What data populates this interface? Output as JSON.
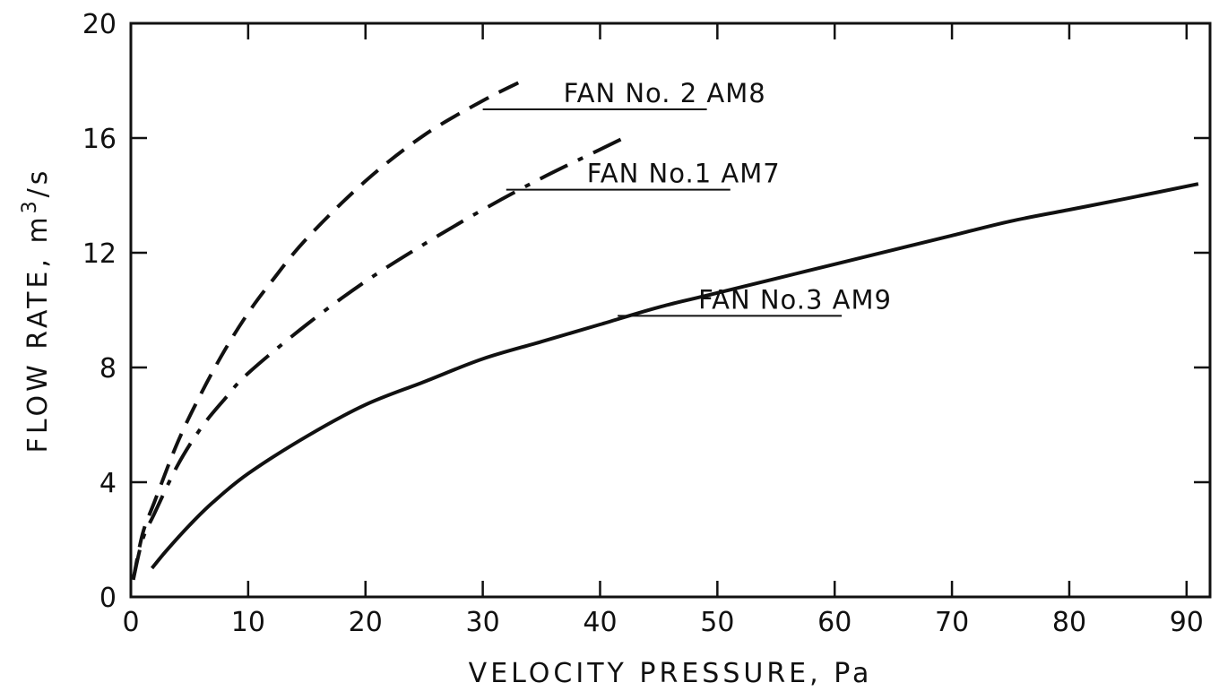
{
  "chart_data": {
    "type": "line",
    "title": "",
    "xlabel": "VELOCITY PRESSURE, Pa",
    "ylabel": "FLOW RATE, m",
    "ylabel_sup": "3",
    "ylabel_suffix": "/s",
    "xlim": [
      0,
      92
    ],
    "ylim": [
      0,
      20
    ],
    "x_ticks": [
      0,
      10,
      20,
      30,
      40,
      50,
      60,
      70,
      80,
      90
    ],
    "x_tick_labels": [
      "0",
      "10",
      "20",
      "30",
      "40",
      "50",
      "60",
      "70",
      "80",
      "90"
    ],
    "y_ticks": [
      0,
      4,
      8,
      12,
      16,
      20
    ],
    "y_tick_labels": [
      "0",
      "4",
      "8",
      "12",
      "16",
      "20"
    ],
    "grid": false,
    "series": [
      {
        "name": "FAN No. 2 AM8",
        "style": "dashed",
        "x": [
          0.2,
          1,
          2,
          4,
          6,
          8,
          10,
          12,
          15,
          20,
          25,
          30,
          33.4
        ],
        "y": [
          0.6,
          2.2,
          3.3,
          5.4,
          7.1,
          8.6,
          9.9,
          11.0,
          12.5,
          14.5,
          16.1,
          17.3,
          18.0
        ],
        "label_at": {
          "x": 30,
          "y": 17.0
        }
      },
      {
        "name": "FAN No.1 AM7",
        "style": "dash-dot",
        "x": [
          0.2,
          1,
          2,
          4,
          6,
          8,
          10,
          15,
          20,
          25,
          30,
          35,
          40,
          42.5
        ],
        "y": [
          0.6,
          2.0,
          2.9,
          4.6,
          5.9,
          6.9,
          7.8,
          9.5,
          11.0,
          12.3,
          13.5,
          14.6,
          15.6,
          16.1
        ],
        "label_at": {
          "x": 32,
          "y": 14.2
        }
      },
      {
        "name": "FAN No.3 AM9",
        "style": "solid",
        "x": [
          1.8,
          3,
          5,
          7,
          10,
          15,
          20,
          25,
          30,
          35,
          40,
          45,
          50,
          55,
          60,
          65,
          70,
          75,
          80,
          85,
          91
        ],
        "y": [
          1.0,
          1.6,
          2.5,
          3.3,
          4.3,
          5.6,
          6.7,
          7.5,
          8.3,
          8.9,
          9.5,
          10.1,
          10.6,
          11.1,
          11.6,
          12.1,
          12.6,
          13.1,
          13.5,
          13.9,
          14.4
        ],
        "label_at": {
          "x": 41.5,
          "y": 9.8
        }
      }
    ]
  }
}
